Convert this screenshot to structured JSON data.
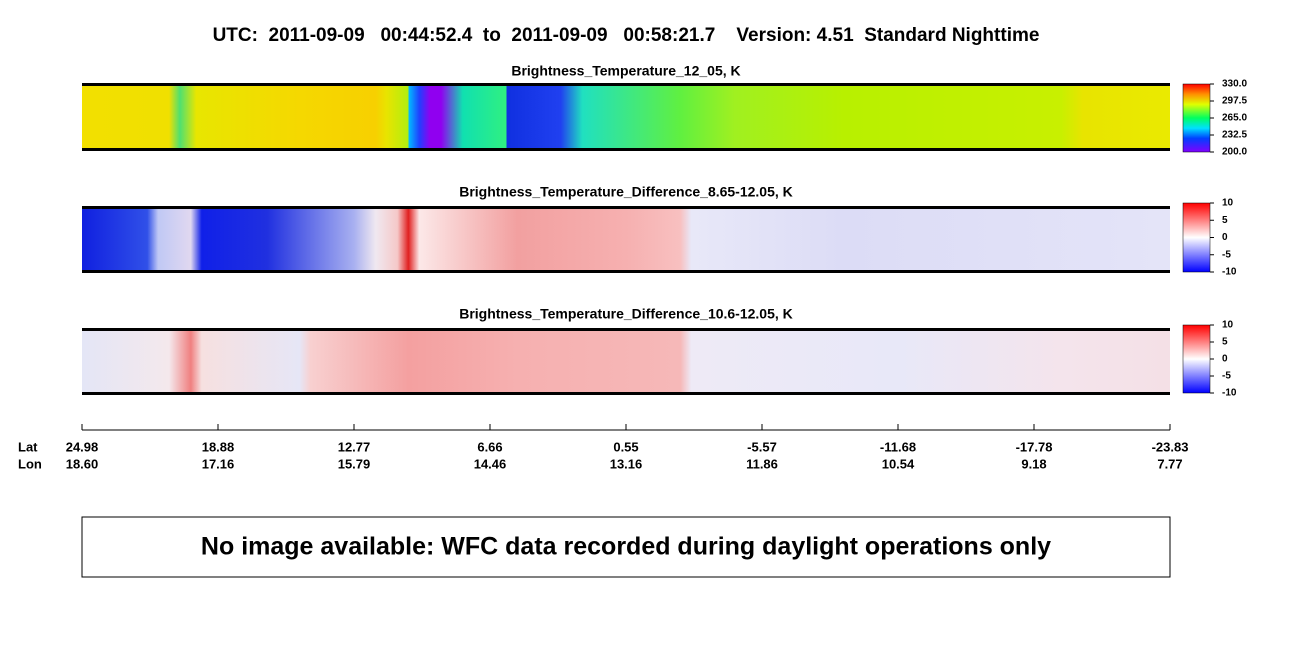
{
  "header": {
    "title": "UTC:  2011-09-09   00:44:52.4  to  2011-09-09   00:58:21.7    Version: 4.51  Standard Nighttime"
  },
  "panels": [
    {
      "title": "Brightness_Temperature_12_05, K",
      "clim": [
        200,
        330
      ],
      "cticks": [
        {
          "value": 330,
          "label": "330.0"
        },
        {
          "value": 297.5,
          "label": "297.5"
        },
        {
          "value": 265,
          "label": "265.0"
        },
        {
          "value": 232.5,
          "label": "232.5"
        },
        {
          "value": 200,
          "label": "200.0"
        }
      ]
    },
    {
      "title": "Brightness_Temperature_Difference_8.65-12.05, K",
      "clim": [
        -10,
        10
      ],
      "cticks": [
        10,
        5,
        0,
        -5,
        -10
      ]
    },
    {
      "title": "Brightness_Temperature_Difference_10.6-12.05, K",
      "clim": [
        -10,
        10
      ],
      "cticks": [
        10,
        5,
        0,
        -5,
        -10
      ]
    }
  ],
  "axis": {
    "lat_label": "Lat",
    "lon_label": "Lon",
    "lat": [
      {
        "value": 24.98,
        "label": "24.98"
      },
      {
        "value": 18.88,
        "label": "18.88"
      },
      {
        "value": 12.77,
        "label": "12.77"
      },
      {
        "value": 6.66,
        "label": "6.66"
      },
      {
        "value": 0.55,
        "label": "0.55"
      },
      {
        "value": -5.57,
        "label": "-5.57"
      },
      {
        "value": -11.68,
        "label": "-11.68"
      },
      {
        "value": -17.78,
        "label": "-17.78"
      },
      {
        "value": -23.83,
        "label": "-23.83"
      }
    ],
    "lon": [
      {
        "value": 18.6,
        "label": "18.60"
      },
      {
        "value": 17.16,
        "label": "17.16"
      },
      {
        "value": 15.79,
        "label": "15.79"
      },
      {
        "value": 14.46,
        "label": "14.46"
      },
      {
        "value": 13.16,
        "label": "13.16"
      },
      {
        "value": 11.86,
        "label": "11.86"
      },
      {
        "value": 10.54,
        "label": "10.54"
      },
      {
        "value": 9.18,
        "label": "9.18"
      },
      {
        "value": 7.77,
        "label": "7.77"
      }
    ]
  },
  "message": "No image available: WFC data recorded during daylight operations only"
}
